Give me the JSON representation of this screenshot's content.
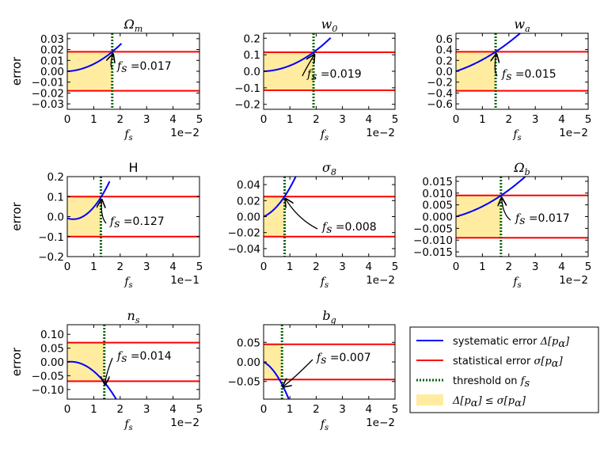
{
  "chart_data": [
    {
      "id": "p1",
      "type": "line",
      "title": "Ω",
      "title_sub": "m",
      "title_plain": false,
      "ylabel": "error",
      "xlabel": "f",
      "xlabel_sub": "s",
      "xlim": [
        0,
        5
      ],
      "xscale_label": "1e−2",
      "ylim": [
        -0.035,
        0.035
      ],
      "yticks": [
        -0.03,
        -0.02,
        -0.01,
        0.0,
        0.01,
        0.02,
        0.03
      ],
      "ytick_labels": [
        "−0.03",
        "−0.02",
        "−0.01",
        "0.00",
        "0.01",
        "0.02",
        "0.03"
      ],
      "xticks": [
        0,
        1,
        2,
        3,
        4,
        5
      ],
      "xtick_labels": [
        "0",
        "1",
        "2",
        "3",
        "4",
        "5"
      ],
      "sigma": 0.018,
      "threshold": 1.7,
      "annotation_value": "0.017",
      "curve": {
        "x0": 0,
        "x1": 2.05,
        "c": 0.0,
        "b": 0.0012,
        "a": 0.0055
      }
    },
    {
      "id": "p2",
      "type": "line",
      "title": "w",
      "title_sub": "0",
      "title_plain": false,
      "ylabel": "",
      "xlabel": "f",
      "xlabel_sub": "s",
      "xlim": [
        0,
        5
      ],
      "xscale_label": "1e−2",
      "ylim": [
        -0.23,
        0.23
      ],
      "yticks": [
        -0.2,
        -0.1,
        0.0,
        0.1,
        0.2
      ],
      "ytick_labels": [
        "−0.2",
        "−0.1",
        "0.0",
        "0.1",
        "0.2"
      ],
      "xticks": [
        0,
        1,
        2,
        3,
        4,
        5
      ],
      "xtick_labels": [
        "0",
        "1",
        "2",
        "3",
        "4",
        "5"
      ],
      "sigma": 0.115,
      "threshold": 1.9,
      "annotation_value": "0.019",
      "curve": {
        "x0": 0,
        "x1": 2.55,
        "c": 0.0,
        "b": 0.005,
        "a": 0.0292
      }
    },
    {
      "id": "p3",
      "type": "line",
      "title": "w",
      "title_sub": "a",
      "title_plain": false,
      "ylabel": "",
      "xlabel": "f",
      "xlabel_sub": "s",
      "xlim": [
        0,
        5
      ],
      "xscale_label": "1e−2",
      "ylim": [
        -0.7,
        0.7
      ],
      "yticks": [
        -0.6,
        -0.4,
        -0.2,
        0.0,
        0.2,
        0.4,
        0.6
      ],
      "ytick_labels": [
        "−0.6",
        "−0.4",
        "−0.2",
        "0.0",
        "0.2",
        "0.4",
        "0.6"
      ],
      "xticks": [
        0,
        1,
        2,
        3,
        4,
        5
      ],
      "xtick_labels": [
        "0",
        "1",
        "2",
        "3",
        "4",
        "5"
      ],
      "sigma": 0.36,
      "threshold": 1.5,
      "annotation_value": "0.015",
      "curve": {
        "x0": 0,
        "x1": 2.6,
        "c": 0.0,
        "b": 0.16,
        "a": 0.053
      }
    },
    {
      "id": "p4",
      "type": "line",
      "title": "H",
      "title_sub": "",
      "title_plain": true,
      "ylabel": "error",
      "xlabel": "f",
      "xlabel_sub": "s",
      "xlim": [
        0,
        5
      ],
      "xscale_label": "1e−1",
      "ylim": [
        -0.2,
        0.2
      ],
      "yticks": [
        -0.2,
        -0.1,
        0.0,
        0.1,
        0.2
      ],
      "ytick_labels": [
        "−0.2",
        "−0.1",
        "0.0",
        "0.1",
        "0.2"
      ],
      "xticks": [
        0,
        1,
        2,
        3,
        4,
        5
      ],
      "xtick_labels": [
        "0",
        "1",
        "2",
        "3",
        "4",
        "5"
      ],
      "sigma": 0.1,
      "threshold": 1.27,
      "annotation_value": "0.127",
      "curve": {
        "x0": 0,
        "x1": 1.6,
        "c": -0.008,
        "b": -0.045,
        "a": 0.1
      }
    },
    {
      "id": "p5",
      "type": "line",
      "title": "σ",
      "title_sub": "8",
      "title_plain": false,
      "ylabel": "",
      "xlabel": "f",
      "xlabel_sub": "s",
      "xlim": [
        0,
        5
      ],
      "xscale_label": "1e−2",
      "ylim": [
        -0.05,
        0.05
      ],
      "yticks": [
        -0.04,
        -0.02,
        0.0,
        0.02,
        0.04
      ],
      "ytick_labels": [
        "−0.04",
        "−0.02",
        "0.00",
        "0.02",
        "0.04"
      ],
      "xticks": [
        0,
        1,
        2,
        3,
        4,
        5
      ],
      "xtick_labels": [
        "0",
        "1",
        "2",
        "3",
        "4",
        "5"
      ],
      "sigma": 0.025,
      "threshold": 0.8,
      "annotation_value": "0.008",
      "curve": {
        "x0": 0,
        "x1": 1.25,
        "c": 0.0,
        "b": 0.014,
        "a": 0.022
      }
    },
    {
      "id": "p6",
      "type": "line",
      "title": "Ω",
      "title_sub": "b",
      "title_plain": false,
      "ylabel": "",
      "xlabel": "f",
      "xlabel_sub": "s",
      "xlim": [
        0,
        5
      ],
      "xscale_label": "1e−2",
      "ylim": [
        -0.017,
        0.017
      ],
      "yticks": [
        -0.015,
        -0.01,
        -0.005,
        0.0,
        0.005,
        0.01,
        0.015
      ],
      "ytick_labels": [
        "−0.015",
        "−0.010",
        "−0.005",
        "0.000",
        "0.005",
        "0.010",
        "0.015"
      ],
      "xticks": [
        0,
        1,
        2,
        3,
        4,
        5
      ],
      "xtick_labels": [
        "0",
        "1",
        "2",
        "3",
        "4",
        "5"
      ],
      "sigma": 0.009,
      "threshold": 1.7,
      "annotation_value": "0.017",
      "curve": {
        "x0": 0,
        "x1": 2.7,
        "c": 0.0,
        "b": 0.003,
        "a": 0.00133
      }
    },
    {
      "id": "p7",
      "type": "line",
      "title": "n",
      "title_sub": "s",
      "title_plain": false,
      "ylabel": "error",
      "xlabel": "f",
      "xlabel_sub": "s",
      "xlim": [
        0,
        5
      ],
      "xscale_label": "1e−2",
      "ylim": [
        -0.135,
        0.135
      ],
      "yticks": [
        -0.1,
        -0.05,
        0.0,
        0.05,
        0.1
      ],
      "ytick_labels": [
        "−0.10",
        "−0.05",
        "0.00",
        "0.05",
        "0.10"
      ],
      "xticks": [
        0,
        1,
        2,
        3,
        4,
        5
      ],
      "xtick_labels": [
        "0",
        "1",
        "2",
        "3",
        "4",
        "5"
      ],
      "sigma": 0.07,
      "threshold": 1.4,
      "annotation_value": "0.014",
      "curve": {
        "x0": 0,
        "x1": 1.9,
        "c": 0.0,
        "b": 0.012,
        "a": -0.046
      }
    },
    {
      "id": "p8",
      "type": "line",
      "title": "b",
      "title_sub": "g",
      "title_plain": false,
      "ylabel": "",
      "xlabel": "f",
      "xlabel_sub": "s",
      "xlim": [
        0,
        5
      ],
      "xscale_label": "1e−2",
      "ylim": [
        -0.095,
        0.095
      ],
      "yticks": [
        -0.05,
        0.0,
        0.05
      ],
      "ytick_labels": [
        "−0.05",
        "0.00",
        "0.05"
      ],
      "xticks": [
        0,
        1,
        2,
        3,
        4,
        5
      ],
      "xtick_labels": [
        "0",
        "1",
        "2",
        "3",
        "4",
        "5"
      ],
      "sigma": 0.045,
      "threshold": 0.7,
      "annotation_value": "0.007",
      "curve": {
        "x0": 0,
        "x1": 1.0,
        "c": 0.0,
        "b": -0.035,
        "a": -0.067
      }
    }
  ],
  "annotation_label": {
    "f": "f",
    "sub": "s",
    "eq": "="
  },
  "legend": {
    "items": [
      {
        "kind": "line",
        "color": "#0000ff",
        "text": "systematic error ",
        "math": "Δ[p",
        "math_sub": "α",
        "math_end": "]"
      },
      {
        "kind": "line",
        "color": "#ff0000",
        "text": "statistical error ",
        "math": "σ[p",
        "math_sub": "α",
        "math_end": "]"
      },
      {
        "kind": "dotted",
        "color": "#006400",
        "text": "threshold on ",
        "math": "f",
        "math_sub": "s",
        "math_end": ""
      },
      {
        "kind": "fill",
        "color": "#ffe680",
        "text": "",
        "math": "Δ[p",
        "math_sub": "α",
        "math_end": "] ≤ σ[p",
        "math_sub2": "α",
        "math_end2": "]"
      }
    ]
  },
  "colors": {
    "systematic": "#0000ff",
    "statistical": "#ff0000",
    "threshold": "#006400",
    "fill": "#ffe680"
  }
}
